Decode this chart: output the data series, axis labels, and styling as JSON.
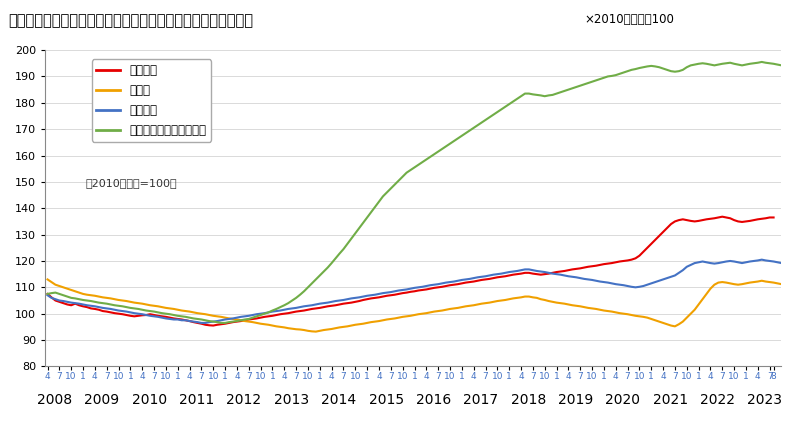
{
  "title": "「不動産価格指数（住宅）（令和５年８月分・季節調整値）」",
  "title_kakko": "「不動産価格指数（住宅）（令和５年８月分・季節調整値）」",
  "title_note": "×2010年平均＝100",
  "subtitle": "（2010年平均=100）",
  "ylim": [
    80,
    200
  ],
  "yticks": [
    80,
    90,
    100,
    110,
    120,
    130,
    140,
    150,
    160,
    170,
    180,
    190,
    200
  ],
  "legend_labels": [
    "住宅総合",
    "住宅地",
    "戸建住宅",
    "マンション（区分所有）"
  ],
  "line_colors": [
    "#e60000",
    "#f0a000",
    "#4472c4",
    "#70ad47"
  ],
  "background_color": "#ffffff",
  "start_year": 2008,
  "start_month": 4,
  "end_year": 2023,
  "end_month": 8,
  "juutaku_sougou": [
    107.5,
    106.2,
    105.0,
    104.5,
    104.0,
    103.5,
    103.2,
    103.8,
    103.2,
    102.8,
    102.5,
    102.0,
    101.8,
    101.5,
    101.0,
    100.8,
    100.5,
    100.2,
    100.0,
    99.8,
    99.5,
    99.2,
    99.0,
    99.2,
    99.4,
    99.5,
    99.8,
    99.5,
    99.2,
    99.0,
    98.8,
    98.5,
    98.2,
    98.0,
    97.8,
    97.5,
    97.2,
    96.8,
    96.5,
    96.2,
    95.8,
    95.6,
    95.5,
    95.8,
    96.0,
    96.2,
    96.5,
    96.8,
    97.0,
    97.2,
    97.5,
    97.8,
    98.0,
    98.2,
    98.5,
    98.8,
    99.0,
    99.2,
    99.5,
    99.8,
    100.0,
    100.2,
    100.5,
    100.8,
    101.0,
    101.2,
    101.5,
    101.8,
    102.0,
    102.2,
    102.5,
    102.8,
    103.0,
    103.2,
    103.5,
    103.8,
    104.0,
    104.2,
    104.5,
    104.8,
    105.2,
    105.5,
    105.8,
    106.0,
    106.2,
    106.5,
    106.8,
    107.0,
    107.2,
    107.5,
    107.8,
    108.0,
    108.3,
    108.5,
    108.8,
    109.0,
    109.2,
    109.5,
    109.8,
    110.0,
    110.2,
    110.5,
    110.8,
    111.0,
    111.2,
    111.5,
    111.8,
    112.0,
    112.2,
    112.5,
    112.8,
    113.0,
    113.2,
    113.5,
    113.8,
    114.0,
    114.2,
    114.5,
    114.8,
    115.0,
    115.2,
    115.5,
    115.5,
    115.2,
    115.0,
    114.8,
    115.0,
    115.2,
    115.5,
    115.8,
    116.0,
    116.2,
    116.5,
    116.8,
    117.0,
    117.2,
    117.5,
    117.8,
    118.0,
    118.2,
    118.5,
    118.8,
    119.0,
    119.2,
    119.5,
    119.8,
    120.0,
    120.2,
    120.5,
    121.0,
    122.0,
    123.5,
    125.0,
    126.5,
    128.0,
    129.5,
    131.0,
    132.5,
    134.0,
    135.0,
    135.5,
    135.8,
    135.5,
    135.2,
    135.0,
    135.2,
    135.5,
    135.8,
    136.0,
    136.2,
    136.5,
    136.8,
    136.5,
    136.2,
    135.5,
    135.0,
    134.8,
    135.0,
    135.2,
    135.5,
    135.8,
    136.0,
    136.2,
    136.5,
    136.5
  ],
  "juutaku_chi": [
    113.0,
    112.0,
    111.0,
    110.5,
    110.0,
    109.5,
    109.0,
    108.5,
    108.0,
    107.5,
    107.2,
    107.0,
    106.8,
    106.5,
    106.2,
    106.0,
    105.8,
    105.5,
    105.2,
    105.0,
    104.8,
    104.5,
    104.2,
    104.0,
    103.8,
    103.5,
    103.2,
    103.0,
    102.8,
    102.5,
    102.2,
    102.0,
    101.8,
    101.5,
    101.2,
    101.0,
    100.8,
    100.5,
    100.2,
    100.0,
    99.8,
    99.5,
    99.2,
    99.0,
    98.8,
    98.5,
    98.2,
    98.0,
    97.8,
    97.5,
    97.2,
    97.0,
    96.8,
    96.5,
    96.2,
    96.0,
    95.8,
    95.5,
    95.2,
    95.0,
    94.8,
    94.5,
    94.3,
    94.1,
    94.0,
    93.8,
    93.5,
    93.3,
    93.2,
    93.5,
    93.8,
    94.0,
    94.2,
    94.5,
    94.8,
    95.0,
    95.2,
    95.5,
    95.8,
    96.0,
    96.2,
    96.5,
    96.8,
    97.0,
    97.2,
    97.5,
    97.8,
    98.0,
    98.2,
    98.5,
    98.8,
    99.0,
    99.2,
    99.5,
    99.8,
    100.0,
    100.2,
    100.5,
    100.8,
    101.0,
    101.2,
    101.5,
    101.8,
    102.0,
    102.2,
    102.5,
    102.8,
    103.0,
    103.2,
    103.5,
    103.8,
    104.0,
    104.2,
    104.5,
    104.8,
    105.0,
    105.2,
    105.5,
    105.8,
    106.0,
    106.2,
    106.5,
    106.5,
    106.2,
    106.0,
    105.5,
    105.2,
    104.8,
    104.5,
    104.2,
    104.0,
    103.8,
    103.5,
    103.2,
    103.0,
    102.8,
    102.5,
    102.2,
    102.0,
    101.8,
    101.5,
    101.2,
    101.0,
    100.8,
    100.5,
    100.2,
    100.0,
    99.8,
    99.5,
    99.2,
    99.0,
    98.8,
    98.5,
    98.0,
    97.5,
    97.0,
    96.5,
    96.0,
    95.5,
    95.2,
    96.0,
    97.0,
    98.5,
    100.0,
    101.5,
    103.5,
    105.5,
    107.5,
    109.5,
    111.0,
    111.8,
    112.0,
    111.8,
    111.5,
    111.2,
    111.0,
    111.2,
    111.5,
    111.8,
    112.0,
    112.2,
    112.5,
    112.2,
    112.0,
    111.8,
    111.5,
    111.2,
    111.5,
    111.8,
    112.0,
    112.2,
    112.5,
    112.8,
    113.0,
    113.2
  ],
  "kodate_juutaku": [
    107.0,
    106.0,
    105.5,
    105.0,
    104.8,
    104.5,
    104.2,
    104.0,
    103.8,
    103.5,
    103.2,
    103.0,
    102.8,
    102.5,
    102.2,
    102.0,
    101.8,
    101.5,
    101.2,
    101.0,
    100.8,
    100.5,
    100.2,
    100.0,
    99.8,
    99.5,
    99.2,
    99.0,
    98.8,
    98.5,
    98.2,
    98.0,
    97.8,
    97.8,
    97.5,
    97.5,
    97.2,
    97.0,
    96.8,
    96.5,
    96.5,
    96.8,
    97.0,
    97.2,
    97.5,
    97.8,
    98.0,
    98.2,
    98.5,
    98.8,
    99.0,
    99.2,
    99.5,
    99.8,
    100.0,
    100.2,
    100.5,
    100.8,
    101.0,
    101.2,
    101.5,
    101.8,
    102.0,
    102.2,
    102.5,
    102.8,
    103.0,
    103.2,
    103.5,
    103.8,
    104.0,
    104.2,
    104.5,
    104.8,
    105.0,
    105.2,
    105.5,
    105.8,
    106.0,
    106.2,
    106.5,
    106.8,
    107.0,
    107.2,
    107.5,
    107.8,
    108.0,
    108.2,
    108.5,
    108.8,
    109.0,
    109.2,
    109.5,
    109.8,
    110.0,
    110.2,
    110.5,
    110.8,
    111.0,
    111.2,
    111.5,
    111.8,
    112.0,
    112.2,
    112.5,
    112.8,
    113.0,
    113.2,
    113.5,
    113.8,
    114.0,
    114.2,
    114.5,
    114.8,
    115.0,
    115.2,
    115.5,
    115.8,
    116.0,
    116.2,
    116.5,
    116.8,
    116.8,
    116.5,
    116.2,
    116.0,
    115.8,
    115.5,
    115.2,
    115.0,
    114.8,
    114.5,
    114.2,
    114.0,
    113.8,
    113.5,
    113.2,
    113.0,
    112.8,
    112.5,
    112.2,
    112.0,
    111.8,
    111.5,
    111.2,
    111.0,
    110.8,
    110.5,
    110.2,
    110.0,
    110.2,
    110.5,
    111.0,
    111.5,
    112.0,
    112.5,
    113.0,
    113.5,
    114.0,
    114.5,
    115.5,
    116.5,
    117.8,
    118.5,
    119.2,
    119.5,
    119.8,
    119.5,
    119.2,
    119.0,
    119.2,
    119.5,
    119.8,
    120.0,
    119.8,
    119.5,
    119.2,
    119.5,
    119.8,
    120.0,
    120.2,
    120.5,
    120.2,
    120.0,
    119.8,
    119.5,
    119.2,
    119.5,
    119.8,
    120.0,
    120.2,
    120.5,
    120.8,
    121.0,
    121.2
  ],
  "manshon": [
    107.5,
    107.8,
    108.0,
    107.5,
    107.0,
    106.5,
    106.0,
    105.8,
    105.5,
    105.2,
    105.0,
    104.8,
    104.5,
    104.2,
    104.0,
    103.8,
    103.5,
    103.2,
    103.0,
    102.8,
    102.5,
    102.2,
    102.0,
    101.8,
    101.5,
    101.2,
    101.0,
    100.8,
    100.5,
    100.2,
    100.0,
    99.8,
    99.5,
    99.2,
    99.0,
    98.8,
    98.5,
    98.2,
    98.0,
    97.8,
    97.5,
    97.2,
    97.0,
    96.8,
    96.5,
    96.5,
    96.8,
    97.0,
    97.2,
    97.5,
    97.8,
    98.0,
    98.5,
    99.0,
    99.5,
    100.0,
    100.5,
    101.2,
    101.8,
    102.5,
    103.2,
    104.0,
    105.0,
    106.0,
    107.2,
    108.5,
    110.0,
    111.5,
    113.0,
    114.5,
    116.0,
    117.5,
    119.2,
    121.0,
    122.8,
    124.5,
    126.5,
    128.5,
    130.5,
    132.5,
    134.5,
    136.5,
    138.5,
    140.5,
    142.5,
    144.5,
    146.0,
    147.5,
    149.0,
    150.5,
    152.0,
    153.5,
    154.5,
    155.5,
    156.5,
    157.5,
    158.5,
    159.5,
    160.5,
    161.5,
    162.5,
    163.5,
    164.5,
    165.5,
    166.5,
    167.5,
    168.5,
    169.5,
    170.5,
    171.5,
    172.5,
    173.5,
    174.5,
    175.5,
    176.5,
    177.5,
    178.5,
    179.5,
    180.5,
    181.5,
    182.5,
    183.5,
    183.5,
    183.2,
    183.0,
    182.8,
    182.5,
    182.8,
    183.0,
    183.5,
    184.0,
    184.5,
    185.0,
    185.5,
    186.0,
    186.5,
    187.0,
    187.5,
    188.0,
    188.5,
    189.0,
    189.5,
    190.0,
    190.2,
    190.5,
    191.0,
    191.5,
    192.0,
    192.5,
    192.8,
    193.2,
    193.5,
    193.8,
    194.0,
    193.8,
    193.5,
    193.0,
    192.5,
    192.0,
    191.8,
    192.0,
    192.5,
    193.5,
    194.2,
    194.5,
    194.8,
    195.0,
    194.8,
    194.5,
    194.2,
    194.5,
    194.8,
    195.0,
    195.2,
    194.8,
    194.5,
    194.2,
    194.5,
    194.8,
    195.0,
    195.2,
    195.5,
    195.2,
    195.0,
    194.8,
    194.5,
    194.2,
    194.5,
    194.8,
    195.0,
    195.2,
    195.5,
    195.8,
    196.0,
    196.2
  ]
}
